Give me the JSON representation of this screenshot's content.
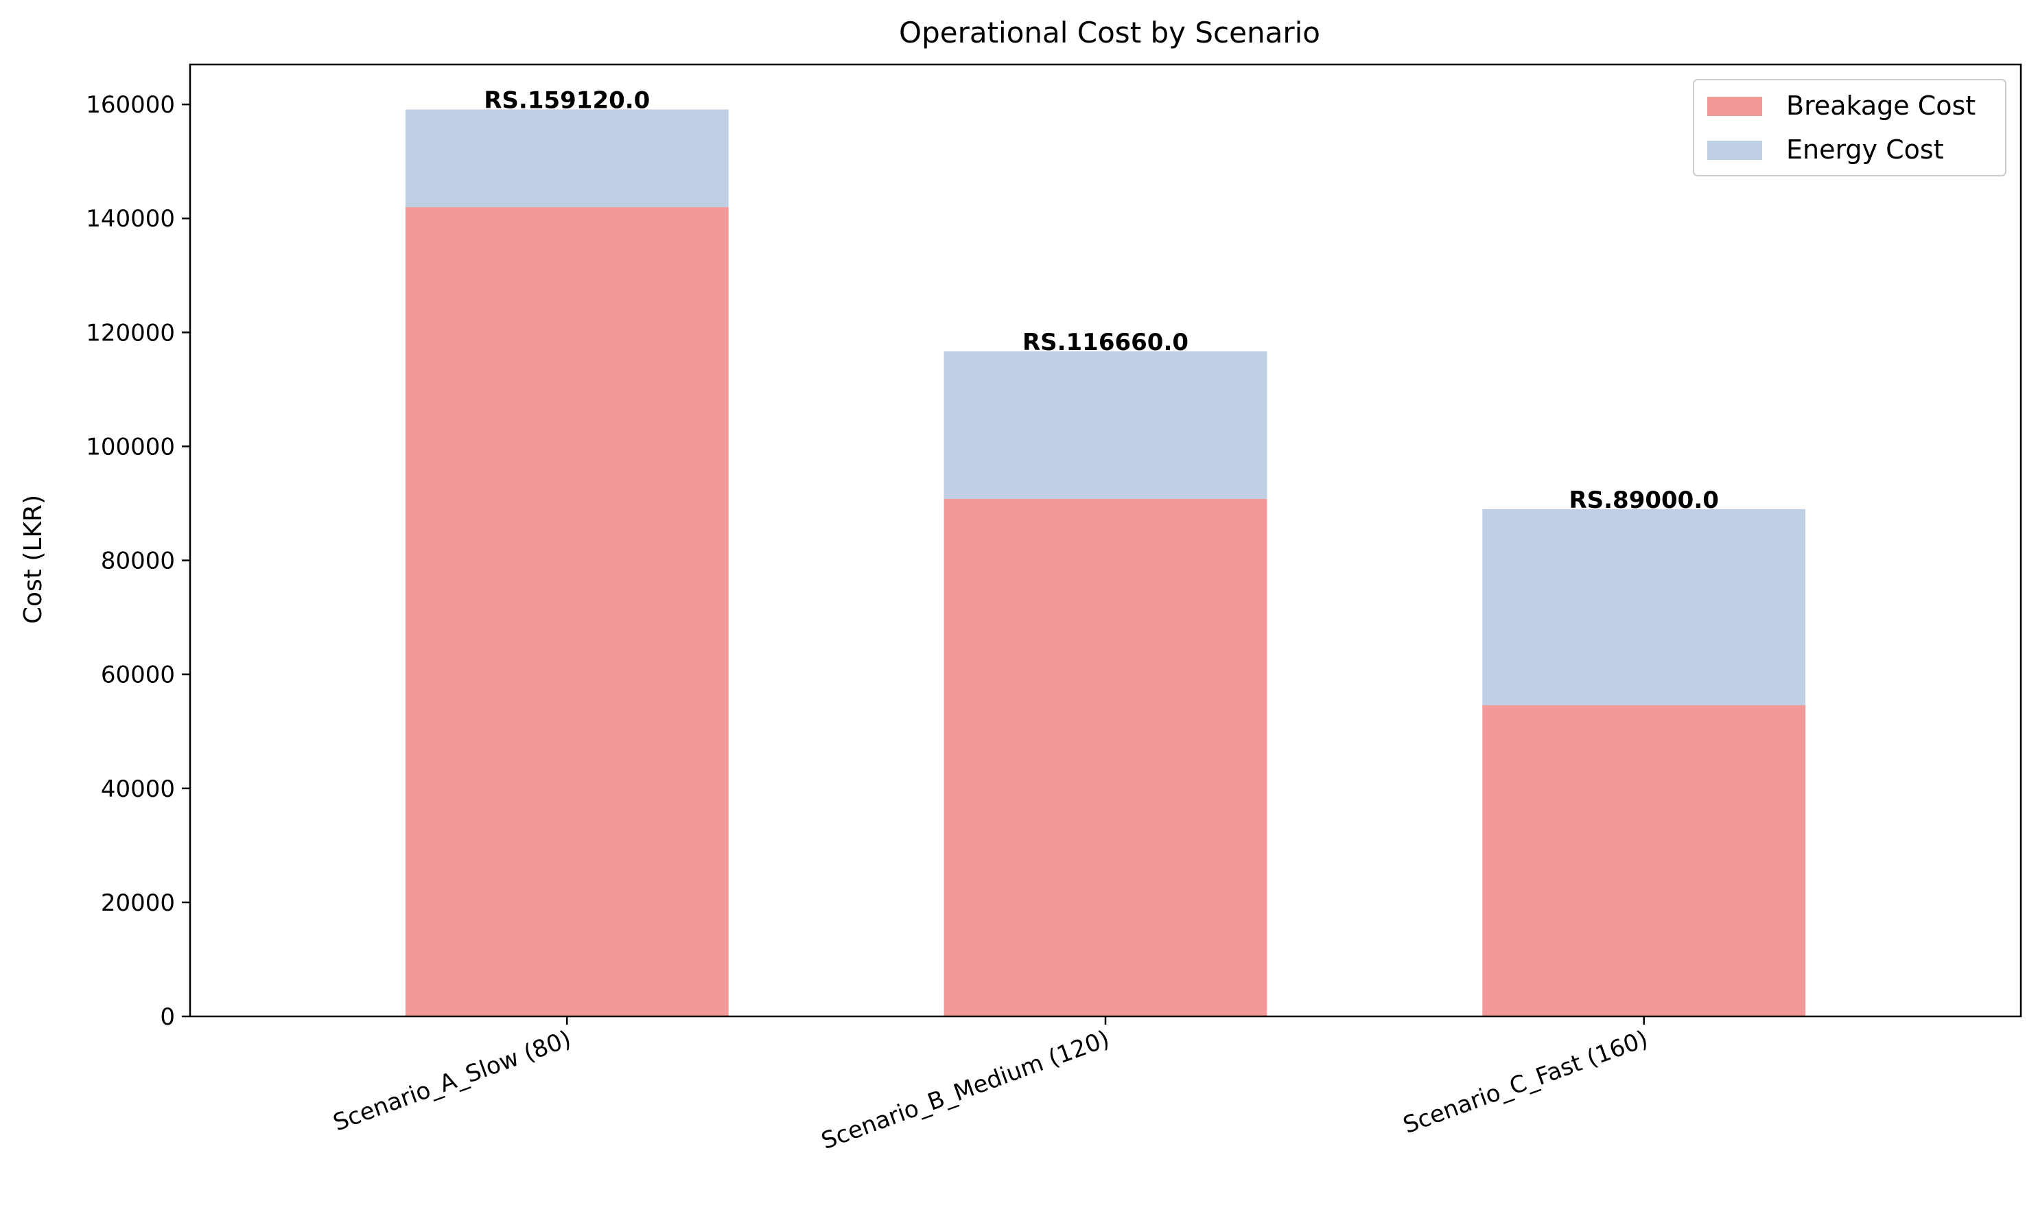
{
  "chart_data": {
    "type": "bar",
    "stacked": true,
    "title": "Operational Cost by Scenario",
    "xlabel": "",
    "ylabel": "Cost (LKR)",
    "ylim": [
      0,
      167000
    ],
    "yticks": [
      0,
      20000,
      40000,
      60000,
      80000,
      100000,
      120000,
      140000,
      160000
    ],
    "grid": false,
    "legend_position": "top-right",
    "categories": [
      "Scenario_A_Slow (80)",
      "Scenario_B_Medium (120)",
      "Scenario_C_Fast (160)"
    ],
    "series": [
      {
        "name": "Breakage Cost",
        "color": "#f29a99",
        "values": [
          142000,
          90800,
          54600
        ]
      },
      {
        "name": "Energy Cost",
        "color": "#bfcfe4",
        "values": [
          17120,
          25860,
          34400
        ]
      }
    ],
    "totals": [
      159120,
      116660,
      89000
    ],
    "total_labels": [
      "RS.159120.0",
      "RS.116660.0",
      "RS.89000.0"
    ]
  }
}
